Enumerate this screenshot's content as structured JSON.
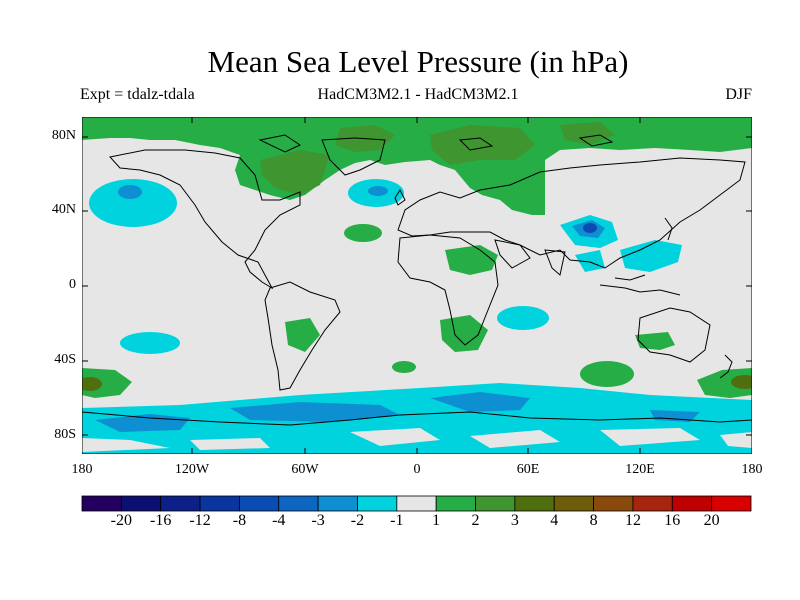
{
  "title": "Mean Sea Level Pressure (in hPa)",
  "subtitle_left": "Expt = tdalz-tdala",
  "subtitle_center": "HadCM3M2.1 - HadCM3M2.1",
  "subtitle_right": "DJF",
  "lat_labels": [
    "80N",
    "40N",
    "0",
    "40S",
    "80S"
  ],
  "lon_labels": [
    "180",
    "120W",
    "60W",
    "0",
    "60E",
    "120E",
    "180"
  ],
  "colorbar": {
    "labels": [
      "-20",
      "-16",
      "-12",
      "-8",
      "-4",
      "-3",
      "-2",
      "-1",
      "1",
      "2",
      "3",
      "4",
      "8",
      "12",
      "16",
      "20"
    ],
    "colors": [
      "#23005f",
      "#0b0f72",
      "#0c2088",
      "#0a34a0",
      "#0a4cb4",
      "#0e66c3",
      "#0e8fd2",
      "#00d2de",
      "#e6e6e6",
      "#26ad45",
      "#3f9530",
      "#4f6f0f",
      "#6f5d09",
      "#8b4a0d",
      "#a7250f",
      "#c00000",
      "#d90000"
    ]
  },
  "map": {
    "land_color": "#e6e6e6",
    "coast_color": "#000000"
  }
}
